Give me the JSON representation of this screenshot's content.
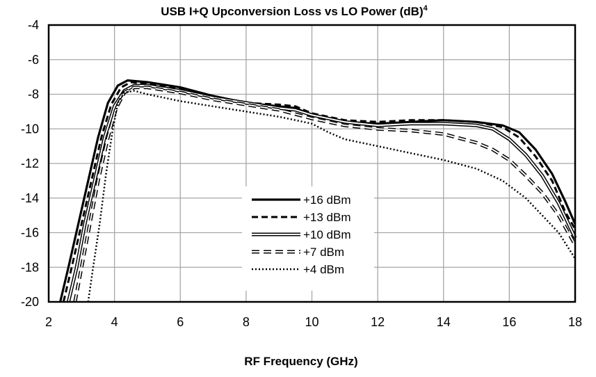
{
  "chart_data": {
    "type": "line",
    "title": "USB I+Q  Upconversion  Loss vs LO Power (dB)",
    "title_superscript": "4",
    "xlabel": "RF Frequency  (GHz)",
    "ylabel": "",
    "xlim": [
      2,
      18
    ],
    "ylim": [
      -20,
      -4
    ],
    "xticks": [
      2,
      4,
      6,
      8,
      10,
      12,
      14,
      16,
      18
    ],
    "yticks": [
      -4,
      -6,
      -8,
      -10,
      -12,
      -14,
      -16,
      -18,
      -20
    ],
    "grid": true,
    "legend_position": "center-bottom",
    "series": [
      {
        "name": "+16 dBm",
        "style": "solid",
        "points": [
          [
            2.35,
            -20
          ],
          [
            2.6,
            -18
          ],
          [
            2.9,
            -15.5
          ],
          [
            3.2,
            -13
          ],
          [
            3.5,
            -10.5
          ],
          [
            3.8,
            -8.5
          ],
          [
            4.1,
            -7.5
          ],
          [
            4.4,
            -7.2
          ],
          [
            5,
            -7.3
          ],
          [
            6,
            -7.6
          ],
          [
            7,
            -8.1
          ],
          [
            8,
            -8.5
          ],
          [
            9,
            -8.7
          ],
          [
            9.5,
            -8.8
          ],
          [
            10,
            -9.2
          ],
          [
            11,
            -9.6
          ],
          [
            12,
            -9.7
          ],
          [
            13,
            -9.6
          ],
          [
            14,
            -9.5
          ],
          [
            15,
            -9.6
          ],
          [
            15.8,
            -9.8
          ],
          [
            16.3,
            -10.2
          ],
          [
            16.8,
            -11.2
          ],
          [
            17.3,
            -12.6
          ],
          [
            17.7,
            -14.2
          ],
          [
            18,
            -15.5
          ]
        ]
      },
      {
        "name": "+13 dBm",
        "style": "dashed",
        "points": [
          [
            2.45,
            -20
          ],
          [
            2.7,
            -18
          ],
          [
            3.0,
            -15.5
          ],
          [
            3.3,
            -13
          ],
          [
            3.6,
            -10.5
          ],
          [
            3.9,
            -8.6
          ],
          [
            4.2,
            -7.6
          ],
          [
            4.5,
            -7.3
          ],
          [
            5,
            -7.4
          ],
          [
            6,
            -7.7
          ],
          [
            7,
            -8.1
          ],
          [
            8,
            -8.5
          ],
          [
            9,
            -8.6
          ],
          [
            9.5,
            -8.7
          ],
          [
            10,
            -9.1
          ],
          [
            11,
            -9.5
          ],
          [
            12,
            -9.6
          ],
          [
            13,
            -9.5
          ],
          [
            14,
            -9.5
          ],
          [
            15,
            -9.6
          ],
          [
            15.8,
            -9.9
          ],
          [
            16.3,
            -10.5
          ],
          [
            16.8,
            -11.6
          ],
          [
            17.3,
            -13
          ],
          [
            17.7,
            -14.8
          ],
          [
            18,
            -15.8
          ]
        ]
      },
      {
        "name": "+10 dBm",
        "style": "double",
        "points": [
          [
            2.6,
            -20
          ],
          [
            2.85,
            -18
          ],
          [
            3.1,
            -15.5
          ],
          [
            3.4,
            -13
          ],
          [
            3.7,
            -10.5
          ],
          [
            4.0,
            -8.7
          ],
          [
            4.3,
            -7.8
          ],
          [
            4.6,
            -7.5
          ],
          [
            5,
            -7.5
          ],
          [
            6,
            -7.8
          ],
          [
            7,
            -8.2
          ],
          [
            8,
            -8.5
          ],
          [
            9,
            -8.8
          ],
          [
            9.5,
            -8.9
          ],
          [
            10,
            -9.2
          ],
          [
            11,
            -9.6
          ],
          [
            12,
            -9.8
          ],
          [
            13,
            -9.7
          ],
          [
            14,
            -9.7
          ],
          [
            15,
            -9.8
          ],
          [
            15.5,
            -10
          ],
          [
            16,
            -10.6
          ],
          [
            16.5,
            -11.5
          ],
          [
            17,
            -12.7
          ],
          [
            17.5,
            -14.3
          ],
          [
            18,
            -16.3
          ]
        ]
      },
      {
        "name": "+7 dBm",
        "style": "open-dash",
        "points": [
          [
            2.8,
            -20
          ],
          [
            3.0,
            -18
          ],
          [
            3.25,
            -15.5
          ],
          [
            3.5,
            -13
          ],
          [
            3.8,
            -10.5
          ],
          [
            4.05,
            -8.8
          ],
          [
            4.3,
            -7.9
          ],
          [
            4.6,
            -7.6
          ],
          [
            5,
            -7.6
          ],
          [
            6,
            -7.9
          ],
          [
            7,
            -8.3
          ],
          [
            8,
            -8.6
          ],
          [
            9,
            -8.9
          ],
          [
            10,
            -9.4
          ],
          [
            11,
            -9.8
          ],
          [
            12,
            -10
          ],
          [
            13,
            -10.1
          ],
          [
            14,
            -10.3
          ],
          [
            15,
            -10.8
          ],
          [
            15.5,
            -11.2
          ],
          [
            16,
            -11.8
          ],
          [
            16.5,
            -12.7
          ],
          [
            17,
            -13.7
          ],
          [
            17.5,
            -15
          ],
          [
            18,
            -16.7
          ]
        ]
      },
      {
        "name": "+4 dBm",
        "style": "dotted",
        "points": [
          [
            3.2,
            -20
          ],
          [
            3.35,
            -18
          ],
          [
            3.55,
            -15.5
          ],
          [
            3.75,
            -12.5
          ],
          [
            3.95,
            -10
          ],
          [
            4.1,
            -8.5
          ],
          [
            4.3,
            -7.9
          ],
          [
            4.6,
            -7.8
          ],
          [
            5,
            -8
          ],
          [
            6,
            -8.4
          ],
          [
            7,
            -8.7
          ],
          [
            8,
            -9
          ],
          [
            9,
            -9.3
          ],
          [
            10,
            -9.7
          ],
          [
            10.5,
            -10.2
          ],
          [
            11,
            -10.6
          ],
          [
            12,
            -11
          ],
          [
            13,
            -11.4
          ],
          [
            14,
            -11.8
          ],
          [
            15,
            -12.3
          ],
          [
            15.8,
            -13
          ],
          [
            16.5,
            -14
          ],
          [
            17,
            -15
          ],
          [
            17.5,
            -16
          ],
          [
            18,
            -17.5
          ]
        ]
      }
    ]
  }
}
